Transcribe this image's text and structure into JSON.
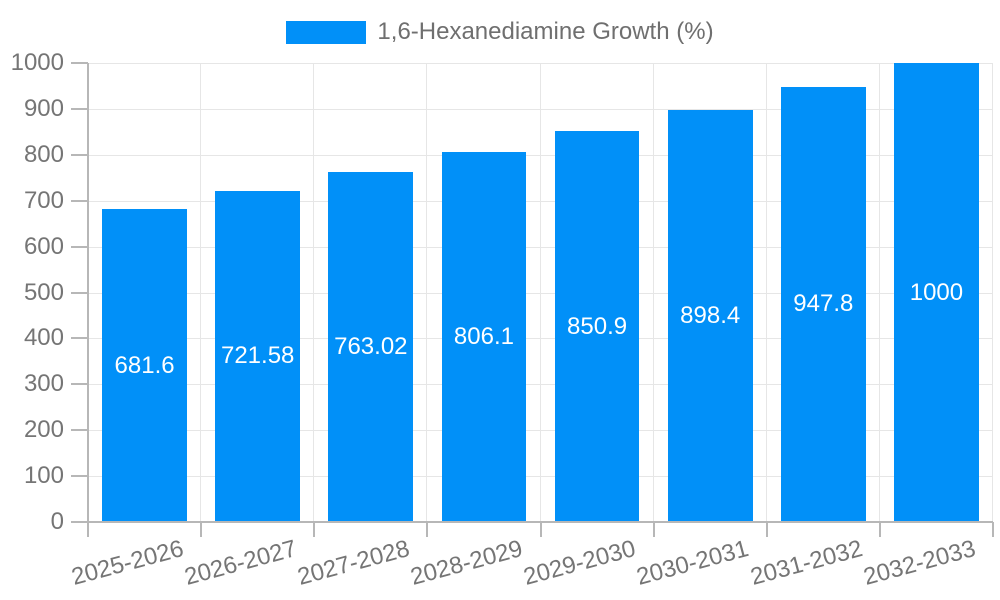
{
  "legend": {
    "label": "1,6-Hexanediamine Growth (%)"
  },
  "chart_data": {
    "type": "bar",
    "title": "",
    "series_name": "1,6-Hexanediamine Growth (%)",
    "categories": [
      "2025-2026",
      "2026-2027",
      "2027-2028",
      "2028-2029",
      "2029-2030",
      "2030-2031",
      "2031-2032",
      "2032-2033"
    ],
    "values": [
      681.6,
      721.58,
      763.02,
      806.1,
      850.9,
      898.4,
      947.8,
      1000
    ],
    "value_labels": [
      "681.6",
      "721.58",
      "763.02",
      "806.1",
      "850.9",
      "898.4",
      "947.8",
      "1000"
    ],
    "xlabel": "",
    "ylabel": "",
    "ylim": [
      0,
      1000
    ],
    "ytick_step": 100,
    "yticks": [
      "0",
      "100",
      "200",
      "300",
      "400",
      "500",
      "600",
      "700",
      "800",
      "900",
      "1000"
    ],
    "grid": true,
    "legend_position": "top-center",
    "x_label_rotation_deg": -15,
    "colors": {
      "bar": "#0190f8",
      "axis_text": "#757575",
      "legend_text": "#6f6f6f",
      "grid_line": "#e6e6e6",
      "axis_line": "#b7b7b7",
      "value_label_text": "#ffffff",
      "background": "#ffffff"
    }
  }
}
